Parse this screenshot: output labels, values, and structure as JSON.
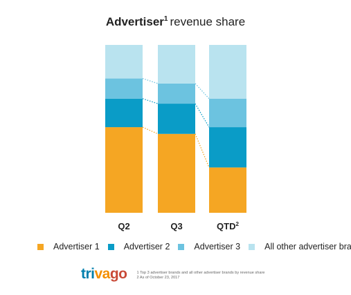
{
  "chart_data": {
    "type": "bar",
    "stacked": true,
    "normalized": true,
    "title": "Advertiser",
    "title_sup": "1",
    "title_rest": "revenue share",
    "categories": [
      "Q2",
      "Q3",
      "QTD"
    ],
    "category_sups": [
      "",
      "",
      "2"
    ],
    "ylim": [
      0,
      100
    ],
    "series": [
      {
        "name": "Advertiser 1",
        "color": "#f5a623",
        "values": [
          51,
          47,
          27
        ]
      },
      {
        "name": "Advertiser 2",
        "color": "#0a9cc7",
        "values": [
          17,
          18,
          24
        ]
      },
      {
        "name": "Advertiser 3",
        "color": "#6cc3e0",
        "values": [
          12,
          12,
          17
        ]
      },
      {
        "name": "All other advertiser brands",
        "color": "#b9e3ef",
        "values": [
          20,
          23,
          32
        ]
      }
    ],
    "legend_position": "bottom",
    "grid": false
  },
  "branding": {
    "logo_parts": [
      "tri",
      "va",
      "go"
    ],
    "footnotes": [
      "1 Top 3 advertiser brands and all other advertiser brands by revenue share",
      "2 As of October 23, 2017"
    ]
  }
}
